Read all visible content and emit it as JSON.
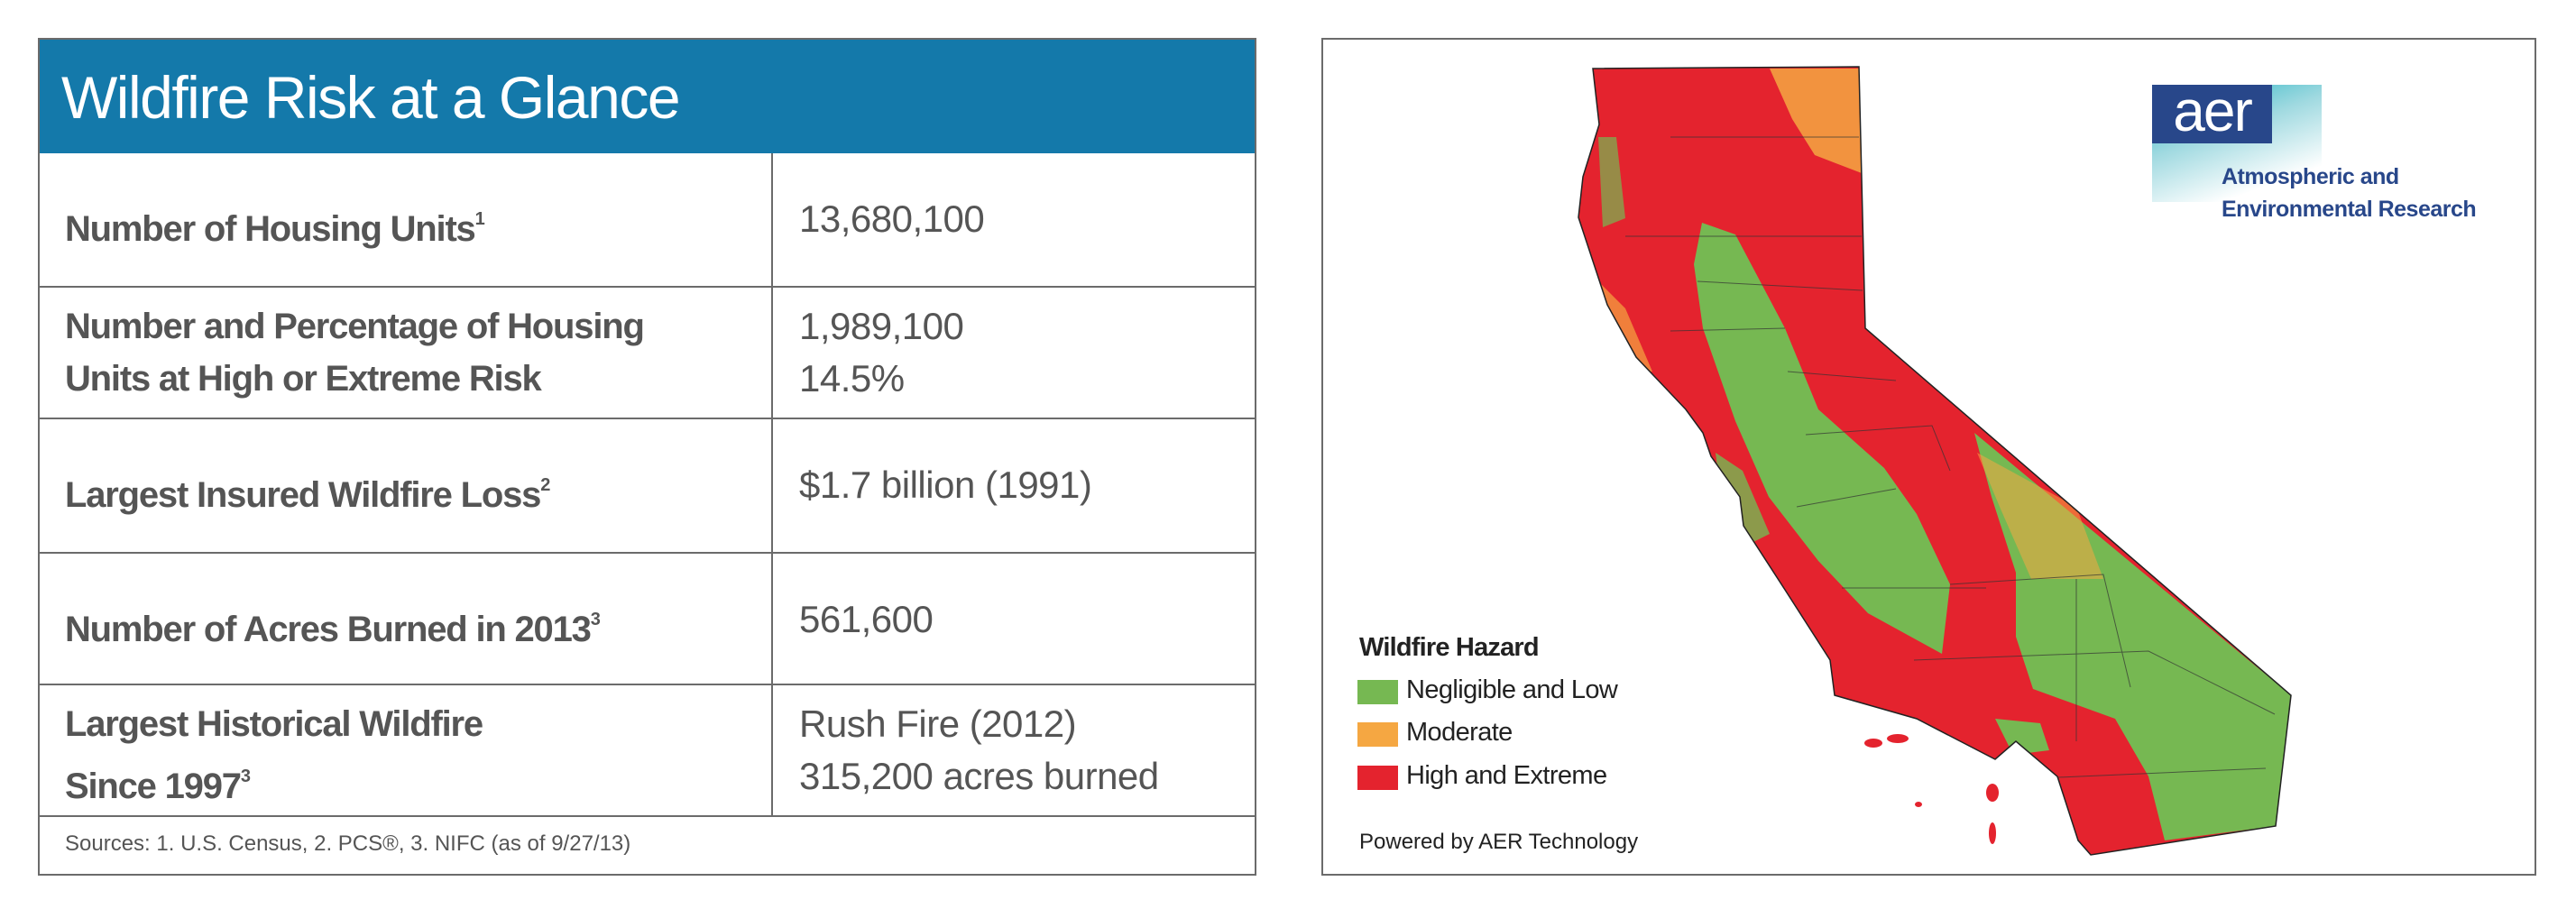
{
  "table": {
    "title": "Wildfire Risk at a Glance",
    "rows": [
      {
        "label": "Number of Housing Units",
        "sup": "1",
        "values": [
          "13,680,100"
        ]
      },
      {
        "label_lines": [
          "Number and Percentage of Housing",
          "Units at High or Extreme Risk"
        ],
        "values": [
          "1,989,100",
          "14.5%"
        ]
      },
      {
        "label": "Largest Insured Wildfire Loss",
        "sup": "2",
        "values": [
          "$1.7 billion (1991)"
        ]
      },
      {
        "label": "Number of Acres Burned in 2013",
        "sup": "3",
        "values": [
          "561,600"
        ]
      },
      {
        "label_lines": [
          "Largest Historical Wildfire",
          "Since 1997"
        ],
        "sup": "3",
        "values": [
          "Rush Fire (2012)",
          "315,200 acres burned"
        ]
      }
    ],
    "sources": "Sources: 1. U.S. Census,  2. PCS®,  3. NIFC (as of 9/27/13)"
  },
  "map": {
    "logo": {
      "mark": "aer",
      "line1": "Atmospheric and",
      "line2": "Environmental Research"
    },
    "legend": {
      "title": "Wildfire Hazard",
      "items": [
        {
          "label": "Negligible and Low",
          "color": "#76b852"
        },
        {
          "label": "Moderate",
          "color": "#f5a742"
        },
        {
          "label": "High and Extreme",
          "color": "#e4232e"
        }
      ]
    },
    "credit": "Powered by AER Technology",
    "colors": {
      "header": "#1479aa",
      "logo": "#28478a"
    }
  }
}
